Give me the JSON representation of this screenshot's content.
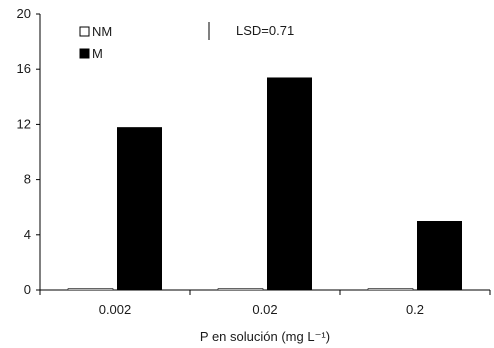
{
  "chart_data": {
    "type": "bar",
    "categories": [
      "0.002",
      "0.02",
      "0.2"
    ],
    "series": [
      {
        "name": "NM",
        "values": [
          0.1,
          0.1,
          0.1
        ],
        "fill": "#ffffff"
      },
      {
        "name": "M",
        "values": [
          11.8,
          15.4,
          5.0
        ],
        "fill": "#000000"
      }
    ],
    "xlabel": "P en solución (mg L⁻¹)",
    "ylabel": "",
    "ylim": [
      0,
      20
    ],
    "yticks": [
      0,
      4,
      8,
      12,
      16,
      20
    ],
    "grid": false,
    "legend_position": "top-left",
    "annotation": "LSD=0.71"
  }
}
